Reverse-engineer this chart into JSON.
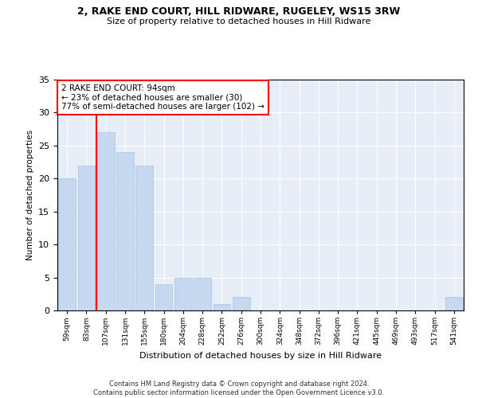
{
  "title": "2, RAKE END COURT, HILL RIDWARE, RUGELEY, WS15 3RW",
  "subtitle": "Size of property relative to detached houses in Hill Ridware",
  "xlabel": "Distribution of detached houses by size in Hill Ridware",
  "ylabel": "Number of detached properties",
  "categories": [
    "59sqm",
    "83sqm",
    "107sqm",
    "131sqm",
    "155sqm",
    "180sqm",
    "204sqm",
    "228sqm",
    "252sqm",
    "276sqm",
    "300sqm",
    "324sqm",
    "348sqm",
    "372sqm",
    "396sqm",
    "421sqm",
    "445sqm",
    "469sqm",
    "493sqm",
    "517sqm",
    "541sqm"
  ],
  "values": [
    20,
    22,
    27,
    24,
    22,
    4,
    5,
    5,
    1,
    2,
    0,
    0,
    0,
    0,
    0,
    0,
    0,
    0,
    0,
    0,
    2
  ],
  "bar_color": "#c5d8f0",
  "bar_edge_color": "#a8c4df",
  "property_line_x": 1.5,
  "annotation_text": "2 RAKE END COURT: 94sqm\n← 23% of detached houses are smaller (30)\n77% of semi-detached houses are larger (102) →",
  "annotation_box_color": "white",
  "annotation_box_edge_color": "red",
  "vline_color": "red",
  "ylim": [
    0,
    35
  ],
  "yticks": [
    0,
    5,
    10,
    15,
    20,
    25,
    30,
    35
  ],
  "background_color": "#e8eef7",
  "grid_color": "white",
  "footer_line1": "Contains HM Land Registry data © Crown copyright and database right 2024.",
  "footer_line2": "Contains public sector information licensed under the Open Government Licence v3.0."
}
